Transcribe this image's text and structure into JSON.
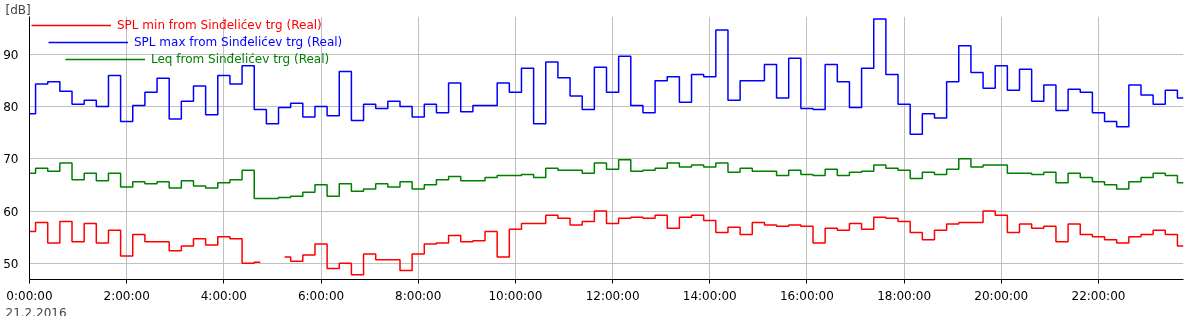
{
  "chart_data": {
    "type": "step",
    "ylabel": "[dB]",
    "annotations": [
      "21.2.2016"
    ],
    "x": [
      0,
      0.25,
      0.5,
      0.75,
      1,
      1.25,
      1.5,
      1.75,
      2,
      2.25,
      2.5,
      2.75,
      3,
      3.25,
      3.5,
      3.75,
      4,
      4.25,
      4.5,
      4.75,
      5,
      5.25,
      5.5,
      5.75,
      6,
      6.25,
      6.5,
      6.75,
      7,
      7.25,
      7.5,
      7.75,
      8,
      8.25,
      8.5,
      8.75,
      9,
      9.25,
      9.5,
      9.75,
      10,
      10.25,
      10.5,
      10.75,
      11,
      11.25,
      11.5,
      11.75,
      12,
      12.25,
      12.5,
      12.75,
      13,
      13.25,
      13.5,
      13.75,
      14,
      14.25,
      14.5,
      14.75,
      15,
      15.25,
      15.5,
      15.75,
      16,
      16.25,
      16.5,
      16.75,
      17,
      17.25,
      17.5,
      17.75,
      18,
      18.25,
      18.5,
      18.75,
      19,
      19.25,
      19.5,
      19.75,
      20,
      20.25,
      20.5,
      20.75,
      21,
      21.25,
      21.5,
      21.75,
      22,
      22.25,
      22.5,
      22.75,
      23,
      23.25,
      23.5,
      23.75
    ],
    "series": [
      {
        "name": "SPL min from Sinđelićev trg (Real)",
        "color": "#ff0000",
        "values": [
          56.1,
          57.8,
          53.9,
          58.0,
          54.1,
          57.6,
          53.9,
          56.3,
          51.4,
          55.5,
          54.1,
          54.1,
          52.4,
          53.3,
          54.7,
          53.5,
          55.1,
          54.7,
          50.0,
          50.2,
          null,
          51.2,
          50.4,
          51.6,
          53.7,
          49.0,
          50.0,
          47.8,
          51.8,
          50.7,
          50.7,
          48.6,
          51.8,
          53.7,
          53.9,
          55.3,
          54.1,
          54.3,
          56.1,
          51.2,
          56.5,
          57.6,
          57.6,
          59.2,
          58.6,
          57.3,
          58.0,
          60.0,
          57.6,
          58.6,
          58.8,
          58.6,
          59.2,
          56.7,
          58.8,
          59.2,
          58.2,
          55.9,
          56.9,
          55.5,
          57.8,
          57.3,
          57.1,
          57.3,
          57.1,
          53.9,
          56.7,
          56.3,
          57.6,
          56.5,
          58.8,
          58.6,
          58.0,
          55.9,
          54.5,
          56.3,
          57.5,
          57.8,
          57.8,
          60.0,
          59.2,
          55.9,
          57.5,
          56.7,
          57.1,
          54.1,
          57.5,
          55.5,
          55.1,
          54.5,
          53.9,
          55.1,
          55.5,
          56.3,
          55.5,
          53.3
        ]
      },
      {
        "name": "SPL max from Sinđelićev trg (Real)",
        "color": "#0000ff",
        "values": [
          78.6,
          84.3,
          84.7,
          82.9,
          80.4,
          81.2,
          80.0,
          85.9,
          77.1,
          80.2,
          82.7,
          85.4,
          77.6,
          81.0,
          83.9,
          78.4,
          85.9,
          84.3,
          87.8,
          79.4,
          76.7,
          79.8,
          80.6,
          78.0,
          80.0,
          78.2,
          86.7,
          77.3,
          80.4,
          79.6,
          81.0,
          80.0,
          78.0,
          80.4,
          78.8,
          84.5,
          79.0,
          80.2,
          80.2,
          84.5,
          82.7,
          87.3,
          76.7,
          88.5,
          85.5,
          82.0,
          79.4,
          87.5,
          82.7,
          89.6,
          80.2,
          78.8,
          84.9,
          85.7,
          80.8,
          86.1,
          85.7,
          94.6,
          81.2,
          84.9,
          84.9,
          88.0,
          81.6,
          89.2,
          79.6,
          79.4,
          88.0,
          84.7,
          79.8,
          87.3,
          96.7,
          86.1,
          80.4,
          74.7,
          78.6,
          77.8,
          84.7,
          91.6,
          86.5,
          83.5,
          87.8,
          83.1,
          87.1,
          81.0,
          84.1,
          79.2,
          83.3,
          82.7,
          78.8,
          77.1,
          76.1,
          84.1,
          82.2,
          80.4,
          83.1,
          81.6
        ]
      },
      {
        "name": "Leq from Sinđelićev trg (Real)",
        "color": "#008000",
        "values": [
          67.2,
          68.2,
          67.6,
          69.2,
          66.0,
          67.2,
          65.8,
          67.2,
          64.6,
          65.6,
          65.2,
          65.6,
          64.4,
          65.8,
          64.8,
          64.4,
          65.4,
          66.0,
          67.8,
          62.4,
          62.4,
          62.6,
          62.8,
          63.6,
          65.0,
          62.8,
          65.2,
          63.8,
          64.2,
          65.2,
          64.6,
          65.6,
          64.2,
          65.0,
          66.0,
          66.6,
          65.8,
          65.8,
          66.4,
          66.8,
          66.8,
          67.0,
          66.4,
          68.2,
          67.8,
          67.8,
          67.2,
          69.2,
          68.0,
          69.8,
          67.6,
          67.8,
          68.2,
          69.2,
          68.4,
          68.8,
          68.4,
          69.2,
          67.4,
          68.2,
          67.6,
          67.6,
          66.8,
          67.8,
          67.0,
          66.8,
          68.0,
          66.8,
          67.4,
          67.6,
          68.8,
          68.2,
          67.8,
          66.2,
          67.4,
          67.0,
          68.0,
          70.0,
          68.4,
          68.8,
          68.8,
          67.2,
          67.2,
          67.0,
          67.4,
          65.4,
          67.2,
          66.4,
          65.6,
          65.0,
          64.2,
          65.6,
          66.4,
          67.2,
          66.8,
          65.4
        ]
      }
    ],
    "xlim": [
      0,
      23.75
    ],
    "ylim": [
      46.9,
      97.2
    ],
    "xticks": [
      {
        "value": 0,
        "label": "0:00:00"
      },
      {
        "value": 2,
        "label": "2:00:00"
      },
      {
        "value": 4,
        "label": "4:00:00"
      },
      {
        "value": 6,
        "label": "6:00:00"
      },
      {
        "value": 8,
        "label": "8:00:00"
      },
      {
        "value": 10,
        "label": "10:00:00"
      },
      {
        "value": 12,
        "label": "12:00:00"
      },
      {
        "value": 14,
        "label": "14:00:00"
      },
      {
        "value": 16,
        "label": "16:00:00"
      },
      {
        "value": 18,
        "label": "18:00:00"
      },
      {
        "value": 20,
        "label": "20:00:00"
      },
      {
        "value": 22,
        "label": "22:00:00"
      }
    ],
    "yticks": [
      50,
      60,
      70,
      80,
      90
    ],
    "grid": true,
    "legend": "top left"
  }
}
